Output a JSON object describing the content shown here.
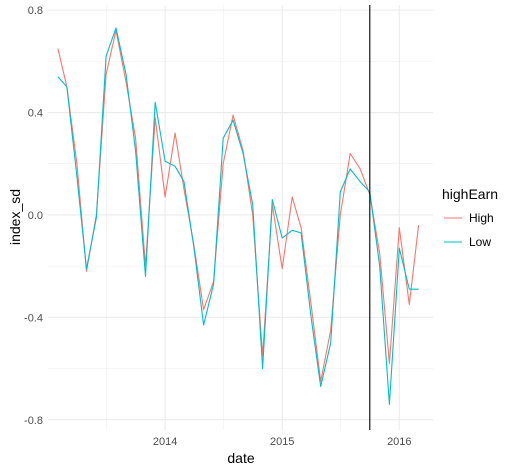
{
  "chart_data": {
    "type": "line",
    "xlabel": "date",
    "ylabel": "index_sd",
    "ylim": [
      -0.84,
      0.82
    ],
    "xlim": [
      "2013-01-01",
      "2016-04-15"
    ],
    "y_ticks": [
      {
        "value": 0.8,
        "label": "0.8"
      },
      {
        "value": 0.4,
        "label": "0.4"
      },
      {
        "value": 0.0,
        "label": "0.0"
      },
      {
        "value": -0.4,
        "label": "-0.4"
      },
      {
        "value": -0.8,
        "label": "-0.8"
      }
    ],
    "x_ticks": [
      {
        "value": "2014-01-01",
        "label": "2014"
      },
      {
        "value": "2015-01-01",
        "label": "2015"
      },
      {
        "value": "2016-01-01",
        "label": "2016"
      }
    ],
    "grid": true,
    "legend_position": "right",
    "legend_title": "highEarn",
    "vline": {
      "value": "2015-10-01",
      "color": "#000000"
    },
    "series": [
      {
        "name": "High",
        "color": "#F8766D",
        "points": [
          [
            "2013-02-01",
            0.65
          ],
          [
            "2013-03-01",
            0.5
          ],
          [
            "2013-04-01",
            0.2
          ],
          [
            "2013-05-01",
            -0.22
          ],
          [
            "2013-06-01",
            0.0
          ],
          [
            "2013-07-01",
            0.55
          ],
          [
            "2013-08-01",
            0.72
          ],
          [
            "2013-09-01",
            0.52
          ],
          [
            "2013-10-01",
            0.3
          ],
          [
            "2013-11-01",
            -0.2
          ],
          [
            "2013-12-01",
            0.38
          ],
          [
            "2014-01-01",
            0.07
          ],
          [
            "2014-02-01",
            0.32
          ],
          [
            "2014-03-01",
            0.1
          ],
          [
            "2014-04-01",
            -0.12
          ],
          [
            "2014-05-01",
            -0.37
          ],
          [
            "2014-06-01",
            -0.26
          ],
          [
            "2014-07-01",
            0.2
          ],
          [
            "2014-08-01",
            0.39
          ],
          [
            "2014-09-01",
            0.25
          ],
          [
            "2014-10-01",
            0.0
          ],
          [
            "2014-11-01",
            -0.55
          ],
          [
            "2014-12-01",
            0.04
          ],
          [
            "2015-01-01",
            -0.21
          ],
          [
            "2015-02-01",
            0.07
          ],
          [
            "2015-03-01",
            -0.05
          ],
          [
            "2015-04-01",
            -0.35
          ],
          [
            "2015-05-01",
            -0.65
          ],
          [
            "2015-06-01",
            -0.45
          ],
          [
            "2015-07-01",
            0.0
          ],
          [
            "2015-08-01",
            0.24
          ],
          [
            "2015-09-01",
            0.18
          ],
          [
            "2015-10-01",
            0.08
          ],
          [
            "2015-11-01",
            -0.15
          ],
          [
            "2015-12-01",
            -0.58
          ],
          [
            "2016-01-01",
            -0.05
          ],
          [
            "2016-02-01",
            -0.35
          ],
          [
            "2016-03-01",
            -0.04
          ]
        ]
      },
      {
        "name": "Low",
        "color": "#00BFC4",
        "points": [
          [
            "2013-02-01",
            0.54
          ],
          [
            "2013-03-01",
            0.5
          ],
          [
            "2013-04-01",
            0.15
          ],
          [
            "2013-05-01",
            -0.21
          ],
          [
            "2013-06-01",
            -0.01
          ],
          [
            "2013-07-01",
            0.62
          ],
          [
            "2013-08-01",
            0.73
          ],
          [
            "2013-09-01",
            0.55
          ],
          [
            "2013-10-01",
            0.25
          ],
          [
            "2013-11-01",
            -0.24
          ],
          [
            "2013-12-01",
            0.44
          ],
          [
            "2014-01-01",
            0.21
          ],
          [
            "2014-02-01",
            0.19
          ],
          [
            "2014-03-01",
            0.13
          ],
          [
            "2014-04-01",
            -0.13
          ],
          [
            "2014-05-01",
            -0.43
          ],
          [
            "2014-06-01",
            -0.27
          ],
          [
            "2014-07-01",
            0.3
          ],
          [
            "2014-08-01",
            0.37
          ],
          [
            "2014-09-01",
            0.24
          ],
          [
            "2014-10-01",
            0.04
          ],
          [
            "2014-11-01",
            -0.6
          ],
          [
            "2014-12-01",
            0.06
          ],
          [
            "2015-01-01",
            -0.09
          ],
          [
            "2015-02-01",
            -0.06
          ],
          [
            "2015-03-01",
            -0.07
          ],
          [
            "2015-04-01",
            -0.4
          ],
          [
            "2015-05-01",
            -0.67
          ],
          [
            "2015-06-01",
            -0.5
          ],
          [
            "2015-07-01",
            0.09
          ],
          [
            "2015-08-01",
            0.18
          ],
          [
            "2015-09-01",
            0.13
          ],
          [
            "2015-10-01",
            0.09
          ],
          [
            "2015-11-01",
            -0.2
          ],
          [
            "2015-12-01",
            -0.74
          ],
          [
            "2016-01-01",
            -0.13
          ],
          [
            "2016-02-01",
            -0.29
          ],
          [
            "2016-03-01",
            -0.29
          ]
        ]
      }
    ]
  }
}
